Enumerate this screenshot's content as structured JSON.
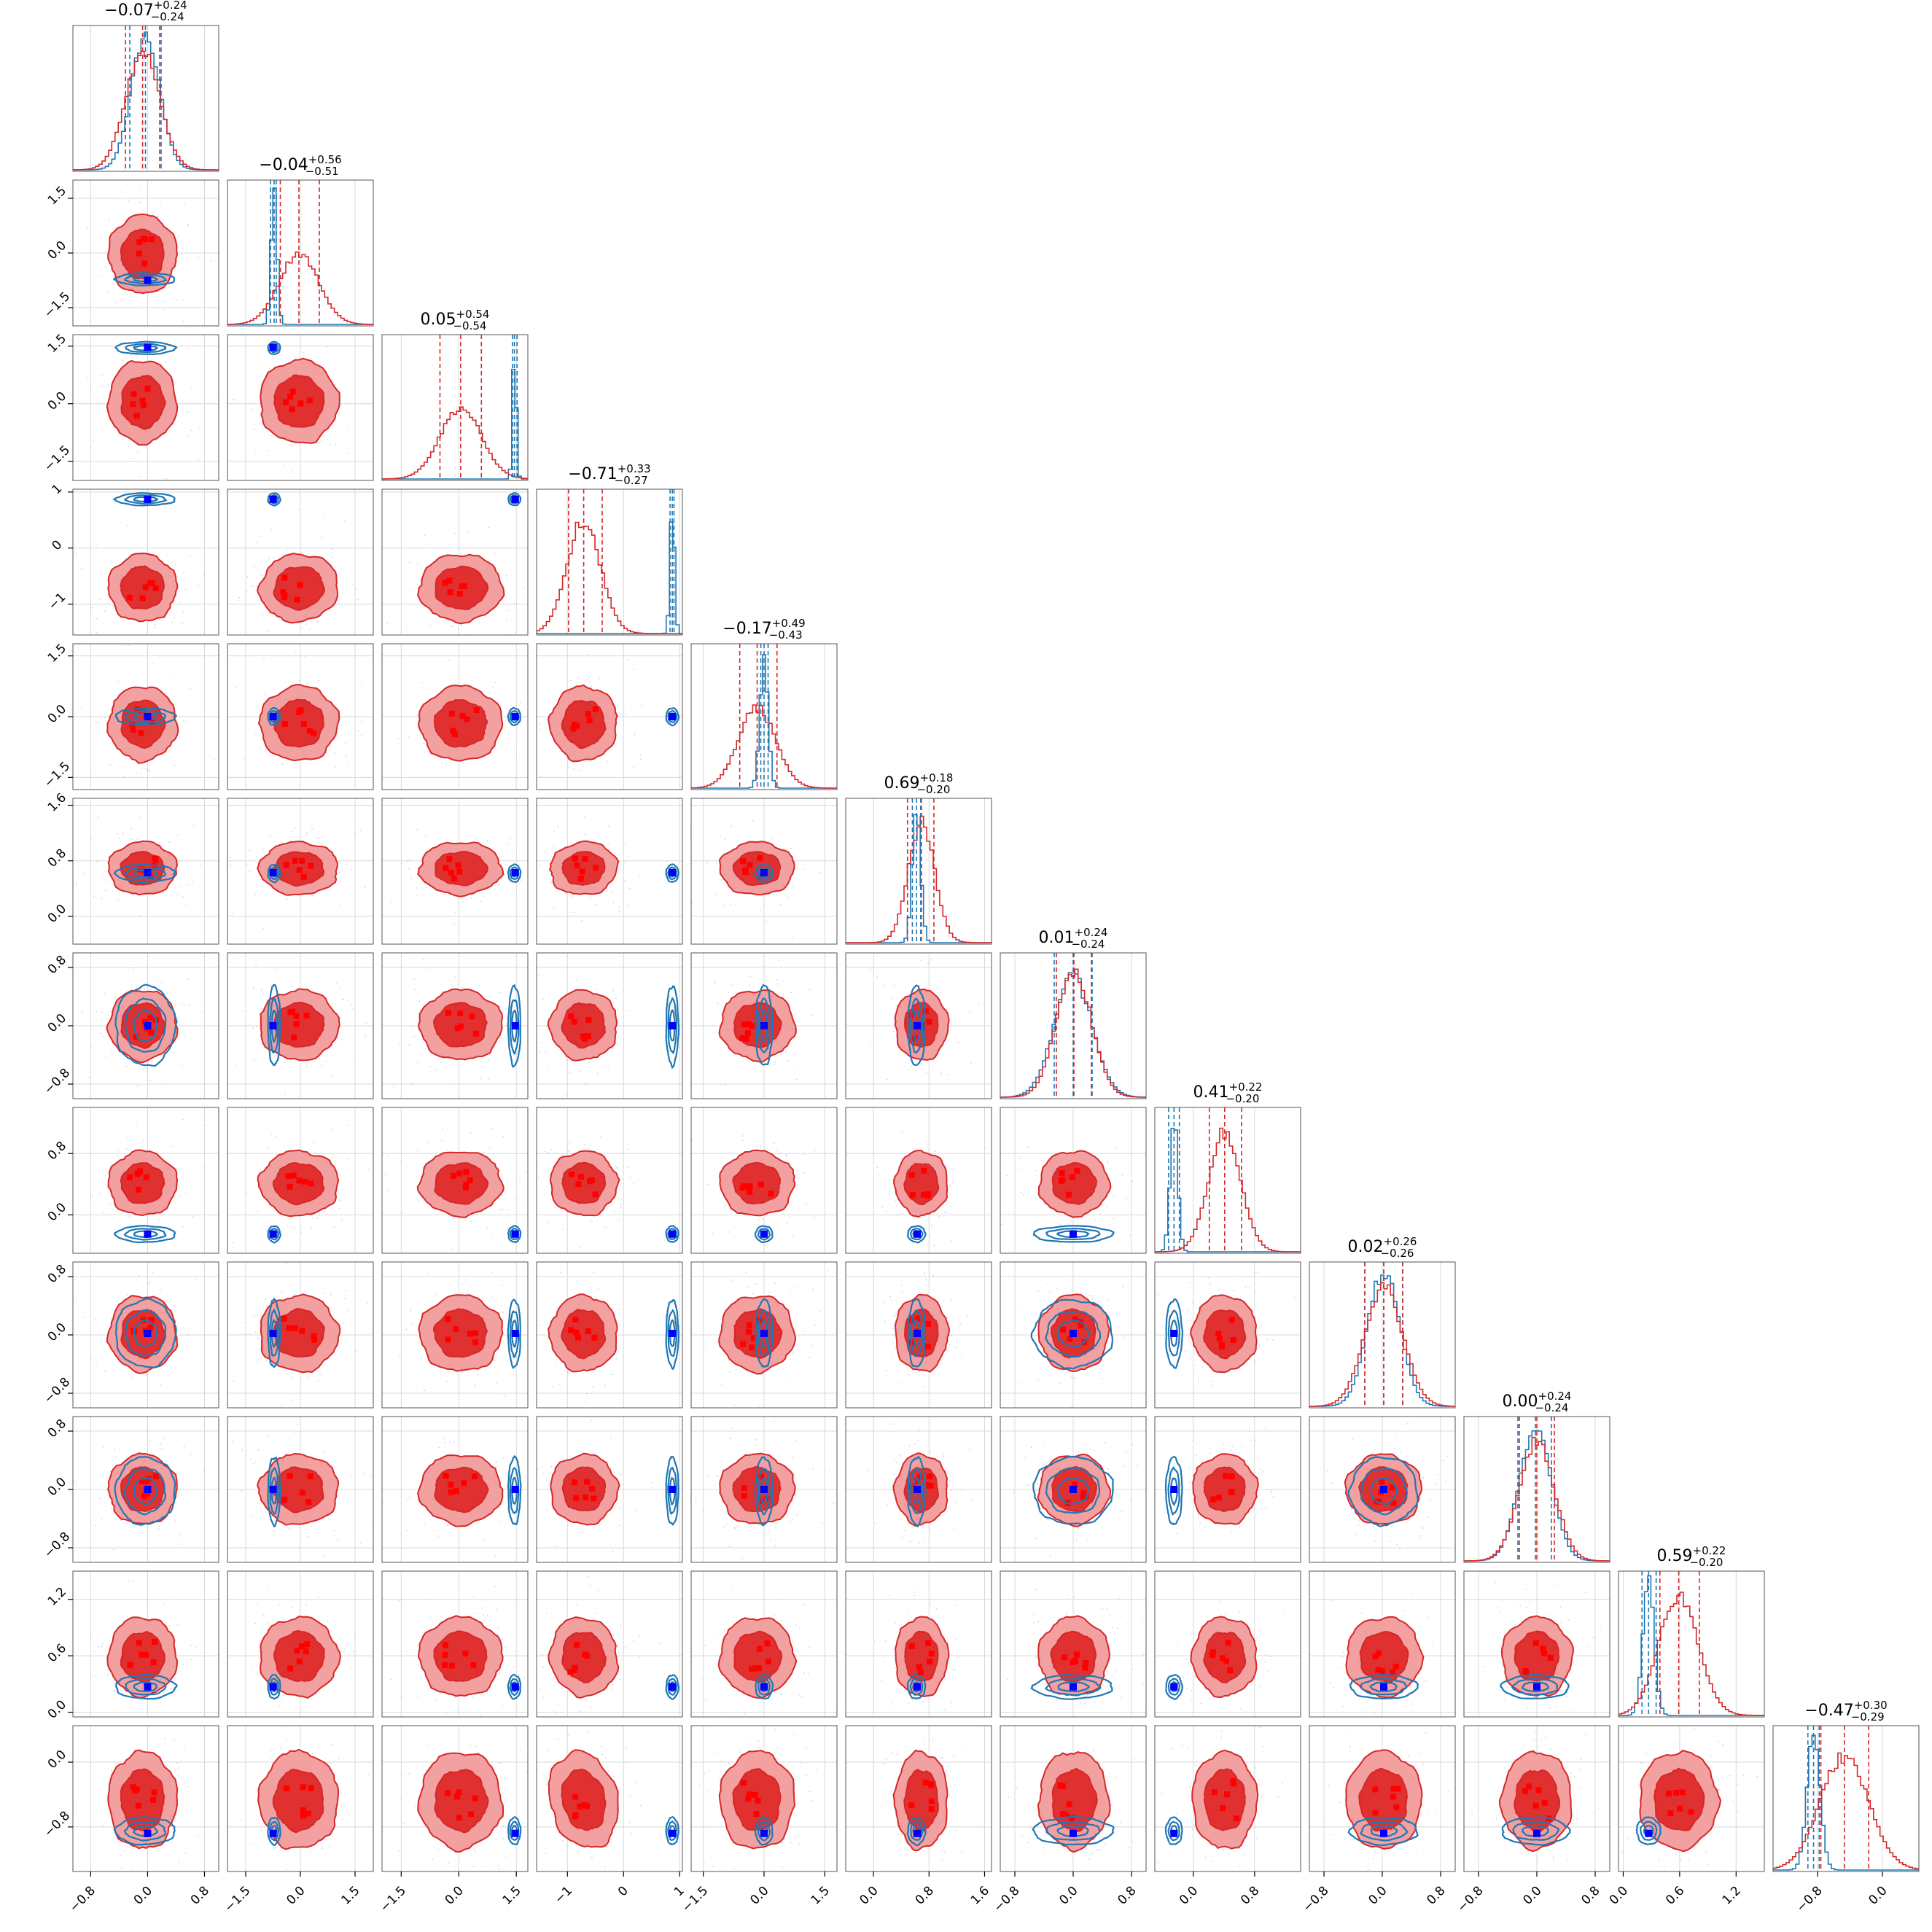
{
  "chart_data": {
    "type": "corner",
    "n_params": 12,
    "grid": true,
    "legend": "none",
    "series": [
      {
        "name": "",
        "color": "#d62728",
        "fill_inner": "#e03030",
        "fill_outer": "#f2a0a0",
        "role": "posterior-broad"
      },
      {
        "name": "",
        "color": "#1f77b4",
        "role": "posterior-narrow"
      }
    ],
    "marker_colors": {
      "truth": "#0000ff",
      "samples": "#ff0000"
    },
    "titles": [
      {
        "median": "−0.07",
        "plus": "+0.24",
        "minus": "−0.24"
      },
      {
        "median": "−0.04",
        "plus": "+0.56",
        "minus": "−0.51"
      },
      {
        "median": "0.05",
        "plus": "+0.54",
        "minus": "−0.54"
      },
      {
        "median": "−0.71",
        "plus": "+0.33",
        "minus": "−0.27"
      },
      {
        "median": "−0.17",
        "plus": "+0.49",
        "minus": "−0.43"
      },
      {
        "median": "0.69",
        "plus": "+0.18",
        "minus": "−0.20"
      },
      {
        "median": "0.01",
        "plus": "+0.24",
        "minus": "−0.24"
      },
      {
        "median": "0.41",
        "plus": "+0.22",
        "minus": "−0.20"
      },
      {
        "median": "0.02",
        "plus": "+0.26",
        "minus": "−0.26"
      },
      {
        "median": "0.00",
        "plus": "+0.24",
        "minus": "−0.24"
      },
      {
        "median": "0.59",
        "plus": "+0.22",
        "minus": "−0.20"
      },
      {
        "median": "−0.47",
        "plus": "+0.30",
        "minus": "−0.29"
      }
    ],
    "params": [
      {
        "range": [
          -1.05,
          1.0
        ],
        "ticks": [
          -0.8,
          0.0,
          0.8
        ],
        "tick_labels": [
          "−0.8",
          "0.0",
          "0.8"
        ],
        "red": {
          "center": -0.07,
          "sd": 0.24,
          "lo": -0.31,
          "hi": 0.17
        },
        "blue": {
          "center": -0.03,
          "sd": 0.2,
          "lo": -0.25,
          "hi": 0.19
        },
        "truth": 0.0
      },
      {
        "range": [
          -2.0,
          2.0
        ],
        "ticks": [
          -1.5,
          0.0,
          1.5
        ],
        "tick_labels": [
          "−1.5",
          "0.0",
          "1.5"
        ],
        "red": {
          "center": -0.04,
          "sd": 0.54,
          "lo": -0.55,
          "hi": 0.52
        },
        "blue": {
          "center": -0.72,
          "sd": 0.08,
          "lo": -0.82,
          "hi": -0.66
        },
        "truth": -0.75
      },
      {
        "range": [
          -2.0,
          1.8
        ],
        "ticks": [
          -1.5,
          0.0,
          1.5
        ],
        "tick_labels": [
          "−1.5",
          "0.0",
          "1.5"
        ],
        "red": {
          "center": 0.05,
          "sd": 0.54,
          "lo": -0.49,
          "hi": 0.59
        },
        "blue": {
          "center": 1.45,
          "sd": 0.05,
          "lo": 1.4,
          "hi": 1.52
        },
        "truth": 1.47
      },
      {
        "range": [
          -1.55,
          1.05
        ],
        "ticks": [
          -1,
          0,
          1
        ],
        "tick_labels": [
          "−1",
          "0",
          "1"
        ],
        "red": {
          "center": -0.71,
          "sd": 0.3,
          "lo": -0.98,
          "hi": -0.38
        },
        "blue": {
          "center": 0.87,
          "sd": 0.04,
          "lo": 0.83,
          "hi": 0.9
        },
        "truth": 0.87
      },
      {
        "range": [
          -1.8,
          1.8
        ],
        "ticks": [
          -1.5,
          0.0,
          1.5
        ],
        "tick_labels": [
          "−1.5",
          "0.0",
          "1.5"
        ],
        "red": {
          "center": -0.17,
          "sd": 0.46,
          "lo": -0.6,
          "hi": 0.32
        },
        "blue": {
          "center": 0.0,
          "sd": 0.1,
          "lo": -0.08,
          "hi": 0.1
        },
        "truth": 0.0
      },
      {
        "range": [
          -0.4,
          1.7
        ],
        "ticks": [
          0.0,
          0.8,
          1.6
        ],
        "tick_labels": [
          "0.0",
          "0.8",
          "1.6"
        ],
        "red": {
          "center": 0.69,
          "sd": 0.19,
          "lo": 0.49,
          "hi": 0.87
        },
        "blue": {
          "center": 0.62,
          "sd": 0.06,
          "lo": 0.56,
          "hi": 0.68
        },
        "truth": 0.63
      },
      {
        "range": [
          -1.0,
          1.0
        ],
        "ticks": [
          -0.8,
          0.0,
          0.8
        ],
        "tick_labels": [
          "−0.8",
          "0.0",
          "0.8"
        ],
        "red": {
          "center": 0.01,
          "sd": 0.24,
          "lo": -0.23,
          "hi": 0.25
        },
        "blue": {
          "center": 0.0,
          "sd": 0.26,
          "lo": -0.26,
          "hi": 0.26
        },
        "truth": 0.0
      },
      {
        "range": [
          -0.5,
          1.4
        ],
        "ticks": [
          0.0,
          0.8
        ],
        "tick_labels": [
          "0.0",
          "0.8"
        ],
        "red": {
          "center": 0.41,
          "sd": 0.21,
          "lo": 0.21,
          "hi": 0.63
        },
        "blue": {
          "center": -0.25,
          "sd": 0.05,
          "lo": -0.32,
          "hi": -0.18
        },
        "truth": -0.25
      },
      {
        "range": [
          -1.0,
          1.0
        ],
        "ticks": [
          -0.8,
          0.0,
          0.8
        ],
        "tick_labels": [
          "−0.8",
          "0.0",
          "0.8"
        ],
        "red": {
          "center": 0.02,
          "sd": 0.26,
          "lo": -0.24,
          "hi": 0.28
        },
        "blue": {
          "center": 0.02,
          "sd": 0.22,
          "lo": -0.24,
          "hi": 0.28
        },
        "truth": 0.02
      },
      {
        "range": [
          -1.0,
          1.0
        ],
        "ticks": [
          -0.8,
          0.0,
          0.8
        ],
        "tick_labels": [
          "−0.8",
          "0.0",
          "0.8"
        ],
        "red": {
          "center": 0.0,
          "sd": 0.24,
          "lo": -0.24,
          "hi": 0.24
        },
        "blue": {
          "center": -0.02,
          "sd": 0.22,
          "lo": -0.26,
          "hi": 0.2
        },
        "truth": 0.0
      },
      {
        "range": [
          -0.05,
          1.5
        ],
        "ticks": [
          0.0,
          0.6,
          1.2
        ],
        "tick_labels": [
          "0.0",
          "0.6",
          "1.2"
        ],
        "red": {
          "center": 0.59,
          "sd": 0.21,
          "lo": 0.39,
          "hi": 0.81
        },
        "blue": {
          "center": 0.27,
          "sd": 0.06,
          "lo": 0.2,
          "hi": 0.35
        },
        "truth": 0.27
      },
      {
        "range": [
          -1.35,
          0.45
        ],
        "ticks": [
          -0.8,
          0.0
        ],
        "tick_labels": [
          "−0.8",
          "0.0"
        ],
        "red": {
          "center": -0.47,
          "sd": 0.3,
          "lo": -0.76,
          "hi": -0.17
        },
        "blue": {
          "center": -0.85,
          "sd": 0.08,
          "lo": -0.92,
          "hi": -0.78
        },
        "truth": -0.88
      }
    ],
    "correlations": [
      {
        "i": 4,
        "j": 1,
        "rho": -0.25
      },
      {
        "i": 3,
        "j": 1,
        "rho": -0.2
      },
      {
        "i": 11,
        "j": 3,
        "rho": -0.3
      },
      {
        "i": 10,
        "j": 3,
        "rho": -0.25
      },
      {
        "i": 5,
        "j": 3,
        "rho": -0.15
      }
    ]
  }
}
